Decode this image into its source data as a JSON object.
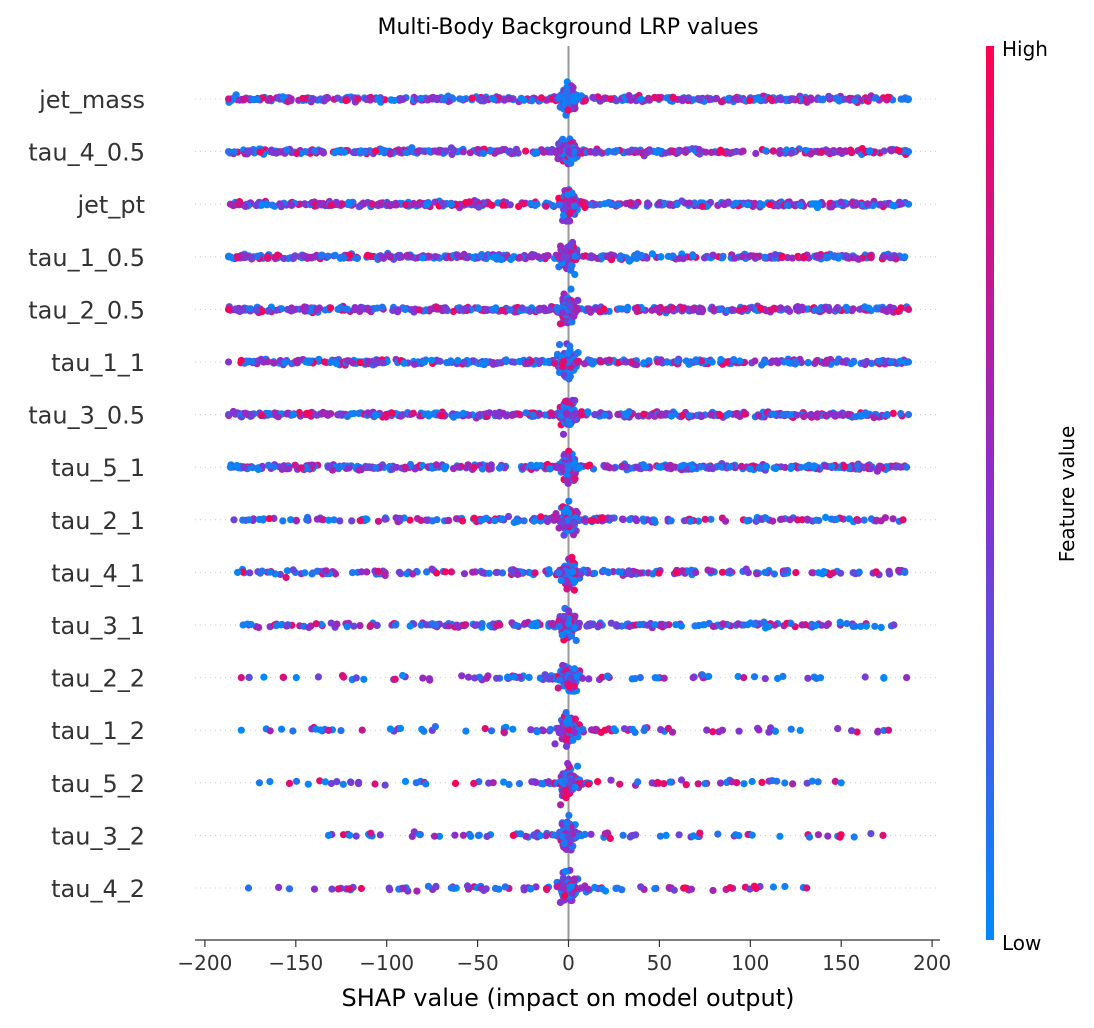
{
  "chart_data": {
    "type": "scatter",
    "subtype": "shap-beeswarm",
    "title": "Multi-Body Background LRP values",
    "xlabel": "SHAP value (impact on model output)",
    "xlim": [
      -205,
      205
    ],
    "x_ticks": [
      -200,
      -150,
      -100,
      -50,
      0,
      50,
      100,
      150,
      200
    ],
    "x_tick_labels": [
      "−200",
      "−150",
      "−100",
      "−50",
      "0",
      "50",
      "100",
      "150",
      "200"
    ],
    "zero_line": 0,
    "grid": false,
    "colorbar": {
      "label": "Feature value",
      "high_label": "High",
      "low_label": "Low",
      "low_color": "#008afb",
      "high_color": "#ff0051",
      "mid_color": "#8a2fcf",
      "placement": "right"
    },
    "features": [
      {
        "name": "jet_mass",
        "min": -187,
        "max": 187,
        "density": "dense",
        "color_bias": 0.15
      },
      {
        "name": "tau_4_0.5",
        "min": -187,
        "max": 187,
        "density": "dense",
        "color_bias": 0.55
      },
      {
        "name": "jet_pt",
        "min": -186,
        "max": 187,
        "density": "dense",
        "color_bias": 0.6
      },
      {
        "name": "tau_1_0.5",
        "min": -187,
        "max": 185,
        "density": "dense",
        "color_bias": 0.4
      },
      {
        "name": "tau_2_0.5",
        "min": -187,
        "max": 187,
        "density": "dense",
        "color_bias": 0.45
      },
      {
        "name": "tau_1_1",
        "min": -187,
        "max": 187,
        "density": "dense",
        "color_bias": 0.15
      },
      {
        "name": "tau_3_0.5",
        "min": -187,
        "max": 187,
        "density": "dense",
        "color_bias": 0.45
      },
      {
        "name": "tau_5_1",
        "min": -186,
        "max": 186,
        "density": "dense",
        "color_bias": 0.3
      },
      {
        "name": "tau_2_1",
        "min": -184,
        "max": 184,
        "density": "medium",
        "color_bias": 0.3
      },
      {
        "name": "tau_4_1",
        "min": -182,
        "max": 185,
        "density": "medium",
        "color_bias": 0.35
      },
      {
        "name": "tau_3_1",
        "min": -179,
        "max": 179,
        "density": "medium",
        "color_bias": 0.3
      },
      {
        "name": "tau_2_2",
        "min": -180,
        "max": 186,
        "density": "sparse",
        "color_bias": 0.2
      },
      {
        "name": "tau_1_2",
        "min": -180,
        "max": 176,
        "density": "sparse",
        "color_bias": 0.2
      },
      {
        "name": "tau_5_2",
        "min": -170,
        "max": 150,
        "density": "sparse",
        "color_bias": 0.35
      },
      {
        "name": "tau_3_2",
        "min": -132,
        "max": 173,
        "density": "sparse",
        "color_bias": 0.4
      },
      {
        "name": "tau_4_2",
        "min": -176,
        "max": 131,
        "density": "sparse",
        "color_bias": 0.35
      }
    ]
  }
}
